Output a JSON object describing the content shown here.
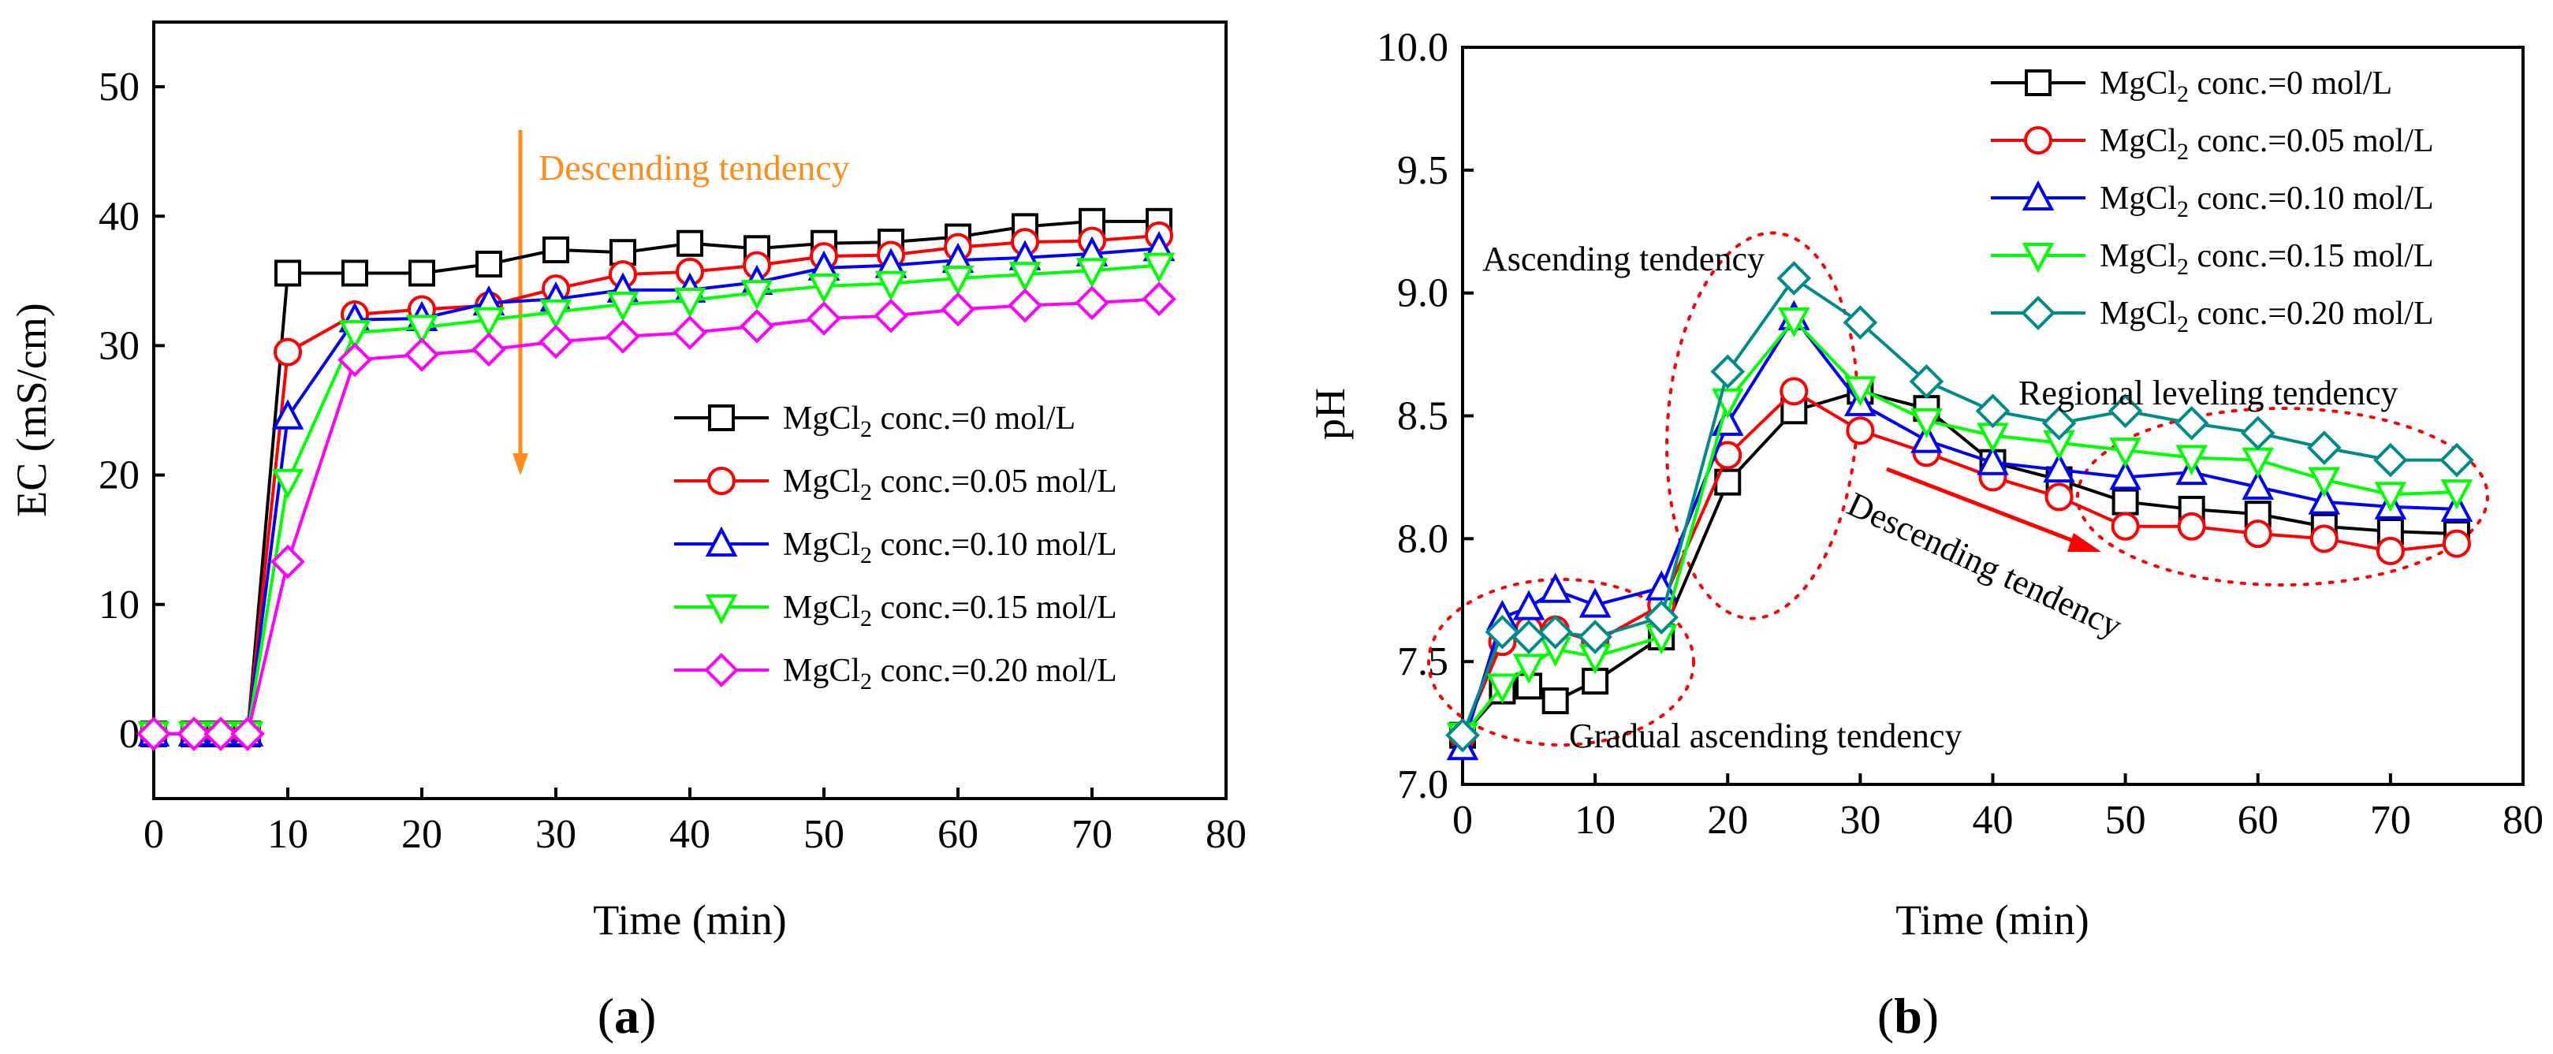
{
  "chart_data": [
    {
      "type": "line",
      "panel_label": "a",
      "xlabel": "Time (min)",
      "ylabel": "EC (mS/cm)",
      "xlim": [
        0,
        80
      ],
      "ylim": [
        -5,
        55
      ],
      "xticks": [
        0,
        10,
        20,
        30,
        40,
        50,
        60,
        70,
        80
      ],
      "yticks": [
        0,
        10,
        20,
        30,
        40,
        50
      ],
      "legend_position": "right-center",
      "annotations": [
        {
          "text": "Descending tendency",
          "color": "#ff8c1a"
        }
      ],
      "x": [
        0,
        3,
        5,
        7,
        10,
        15,
        20,
        25,
        30,
        35,
        40,
        45,
        50,
        55,
        60,
        65,
        70,
        75
      ],
      "series": [
        {
          "name_prefix": "MgCl",
          "name_sub": "2",
          "name_suffix": " conc.=0 mol/L",
          "color": "#000000",
          "marker": "square",
          "values": [
            0,
            0,
            0,
            0,
            35.6,
            35.6,
            35.6,
            36.3,
            37.4,
            37.2,
            37.9,
            37.5,
            37.9,
            38.0,
            38.4,
            39.2,
            39.6,
            39.6
          ]
        },
        {
          "name_prefix": "MgCl",
          "name_sub": "2",
          "name_suffix": " conc.=0.05 mol/L",
          "color": "#ff0000",
          "marker": "circle",
          "values": [
            0,
            0,
            0,
            0,
            29.5,
            32.4,
            32.8,
            33.1,
            34.4,
            35.5,
            35.7,
            36.2,
            36.9,
            37.0,
            37.6,
            38.0,
            38.1,
            38.5
          ]
        },
        {
          "name_prefix": "MgCl",
          "name_sub": "2",
          "name_suffix": " conc.=0.10 mol/L",
          "color": "#0000ff",
          "marker": "triangle-up",
          "values": [
            0,
            0,
            0,
            0,
            24.5,
            32.0,
            32.1,
            33.3,
            33.6,
            34.3,
            34.3,
            34.9,
            36.0,
            36.2,
            36.6,
            36.8,
            37.1,
            37.5
          ]
        },
        {
          "name_prefix": "MgCl",
          "name_sub": "2",
          "name_suffix": " conc.=0.15 mol/L",
          "color": "#00ff00",
          "marker": "triangle-down",
          "values": [
            0,
            0,
            0,
            0,
            19.5,
            31.0,
            31.4,
            32.0,
            32.6,
            33.2,
            33.5,
            34.1,
            34.6,
            34.8,
            35.2,
            35.5,
            35.8,
            36.2
          ]
        },
        {
          "name_prefix": "MgCl",
          "name_sub": "2",
          "name_suffix": " conc.=0.20 mol/L",
          "color": "#ff00ff",
          "marker": "diamond",
          "values": [
            0,
            0,
            0,
            0,
            13.3,
            28.9,
            29.3,
            29.7,
            30.3,
            30.7,
            31.0,
            31.5,
            32.1,
            32.3,
            32.8,
            33.1,
            33.3,
            33.6
          ]
        }
      ]
    },
    {
      "type": "line",
      "panel_label": "b",
      "xlabel": "Time (min)",
      "ylabel": "pH",
      "xlim": [
        0,
        80
      ],
      "ylim": [
        7.0,
        10.0
      ],
      "xticks": [
        0,
        10,
        20,
        30,
        40,
        50,
        60,
        70,
        80
      ],
      "yticks": [
        "7.0",
        "7.5",
        "8.0",
        "8.5",
        "9.0",
        "9.5",
        "10.0"
      ],
      "legend_position": "top-right",
      "annotations": [
        {
          "text": "Ascending tendency"
        },
        {
          "text": "Regional leveling tendency"
        },
        {
          "text": "Descending tendency"
        },
        {
          "text": "Gradual ascending tendency"
        }
      ],
      "x": [
        0,
        3,
        5,
        7,
        10,
        15,
        20,
        25,
        30,
        35,
        40,
        45,
        50,
        55,
        60,
        65,
        70,
        75
      ],
      "series": [
        {
          "name_prefix": "MgCl",
          "name_sub": "2",
          "name_suffix": " conc.=0 mol/L",
          "color": "#000000",
          "marker": "square",
          "values": [
            7.2,
            7.38,
            7.4,
            7.34,
            7.42,
            7.6,
            8.23,
            8.52,
            8.6,
            8.53,
            8.31,
            8.24,
            8.15,
            8.12,
            8.1,
            8.05,
            8.03,
            8.02
          ]
        },
        {
          "name_prefix": "MgCl",
          "name_sub": "2",
          "name_suffix": " conc.=0.05 mol/L",
          "color": "#ff0000",
          "marker": "circle",
          "values": [
            7.2,
            7.58,
            7.63,
            7.63,
            7.58,
            7.73,
            8.34,
            8.6,
            8.44,
            8.35,
            8.25,
            8.17,
            8.05,
            8.05,
            8.02,
            8.0,
            7.95,
            7.98
          ]
        },
        {
          "name_prefix": "MgCl",
          "name_sub": "2",
          "name_suffix": " conc.=0.10 mol/L",
          "color": "#0000ff",
          "marker": "triangle-up",
          "values": [
            7.15,
            7.68,
            7.72,
            7.79,
            7.73,
            7.8,
            8.47,
            8.9,
            8.55,
            8.4,
            8.31,
            8.28,
            8.25,
            8.27,
            8.21,
            8.15,
            8.13,
            8.12
          ]
        },
        {
          "name_prefix": "MgCl",
          "name_sub": "2",
          "name_suffix": " conc.=0.15 mol/L",
          "color": "#00ff00",
          "marker": "triangle-down",
          "values": [
            7.2,
            7.4,
            7.48,
            7.55,
            7.52,
            7.6,
            8.56,
            8.89,
            8.61,
            8.48,
            8.42,
            8.39,
            8.36,
            8.33,
            8.32,
            8.24,
            8.18,
            8.19
          ]
        },
        {
          "name_prefix": "MgCl",
          "name_sub": "2",
          "name_suffix": " conc.=0.20 mol/L",
          "color": "#008b8b",
          "marker": "diamond",
          "values": [
            7.2,
            7.62,
            7.6,
            7.62,
            7.6,
            7.68,
            8.68,
            9.06,
            8.88,
            8.64,
            8.52,
            8.47,
            8.52,
            8.47,
            8.43,
            8.37,
            8.32,
            8.32
          ]
        }
      ]
    }
  ]
}
